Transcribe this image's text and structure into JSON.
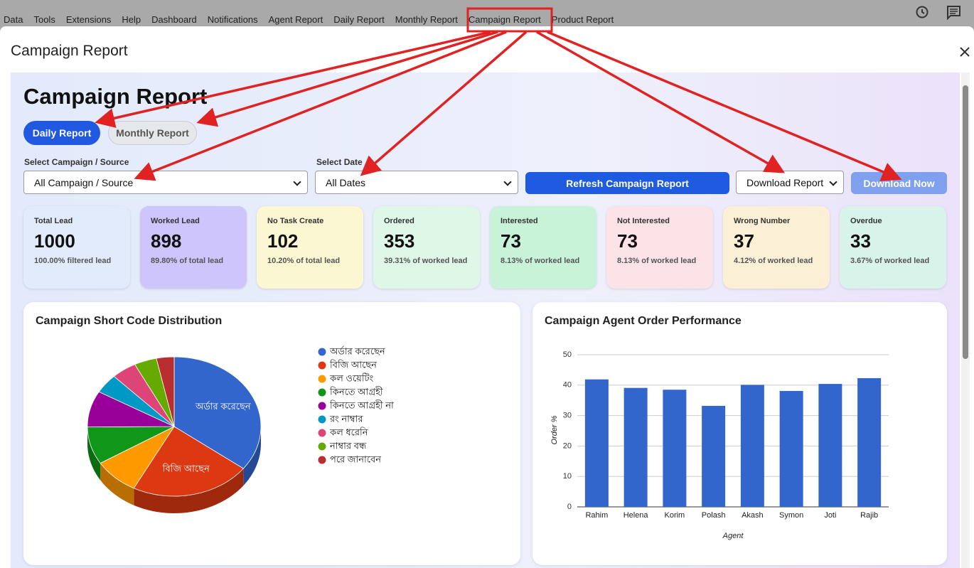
{
  "menu": [
    "Data",
    "Tools",
    "Extensions",
    "Help",
    "Dashboard",
    "Notifications",
    "Agent Report",
    "Daily Report",
    "Monthly Report",
    "Campaign Report",
    "Product Report"
  ],
  "dialog_title": "Campaign Report",
  "heading": "Campaign Report",
  "tabs": [
    "Daily Report",
    "Monthly Report"
  ],
  "filters": {
    "campaign_label": "Select Campaign / Source",
    "campaign_value": "All Campaign / Source",
    "date_label": "Select Date",
    "date_value": "All Dates",
    "refresh_button": "Refresh Campaign Report",
    "download_select": "Download Report",
    "download_button": "Download Now"
  },
  "cards": [
    {
      "label": "Total Lead",
      "value": 1000,
      "note": "100.00% filtered lead",
      "color": "#e2ebfb"
    },
    {
      "label": "Worked Lead",
      "value": 898,
      "note": "89.80% of total lead",
      "color": "#cdc5fb"
    },
    {
      "label": "No Task Create",
      "value": 102,
      "note": "10.20% of total lead",
      "color": "#fbf7d2"
    },
    {
      "label": "Ordered",
      "value": 353,
      "note": "39.31% of worked lead",
      "color": "#def7e7"
    },
    {
      "label": "Interested",
      "value": 73,
      "note": "8.13% of worked lead",
      "color": "#c8f3d9"
    },
    {
      "label": "Not Interested",
      "value": 73,
      "note": "8.13% of worked lead",
      "color": "#fbe3e7"
    },
    {
      "label": "Wrong Number",
      "value": 37,
      "note": "4.12% of worked lead",
      "color": "#fbf0d6"
    },
    {
      "label": "Overdue",
      "value": 33,
      "note": "3.67% of worked lead",
      "color": "#d7f3ea"
    }
  ],
  "chart_data": [
    {
      "type": "pie",
      "title": "Campaign Short Code Distribution",
      "categories": [
        "অর্ডার করেছেন",
        "বিজি আছেন",
        "কল ওয়েটিং",
        "কিনতে আগ্রহী",
        "কিনতে আগ্রহী না",
        "রং নাম্বার",
        "কল ধরেনি",
        "নাম্বার বন্ধ",
        "পরে জানাবেন"
      ],
      "values": [
        35.3,
        22.4,
        8.5,
        8.7,
        8.4,
        4.5,
        4.7,
        4.2,
        3.3
      ],
      "colors": [
        "#3366cc",
        "#dc3912",
        "#ff9900",
        "#109618",
        "#990099",
        "#0099c6",
        "#dd4477",
        "#66aa00",
        "#b82e2e"
      ]
    },
    {
      "type": "bar",
      "title": "Campaign Agent Order Performance",
      "categories": [
        "Rahim",
        "Helena",
        "Korim",
        "Polash",
        "Akash",
        "Symon",
        "Joti",
        "Rajib"
      ],
      "values": [
        41.9,
        39.1,
        38.5,
        33.2,
        40.1,
        38.1,
        40.4,
        42.3
      ],
      "color": "#3366cc",
      "ylim": [
        0,
        50
      ],
      "yticks": [
        0,
        10,
        20,
        30,
        40,
        50
      ],
      "ylabel": "Order %",
      "xlabel": "Agent",
      "grid": true
    }
  ]
}
